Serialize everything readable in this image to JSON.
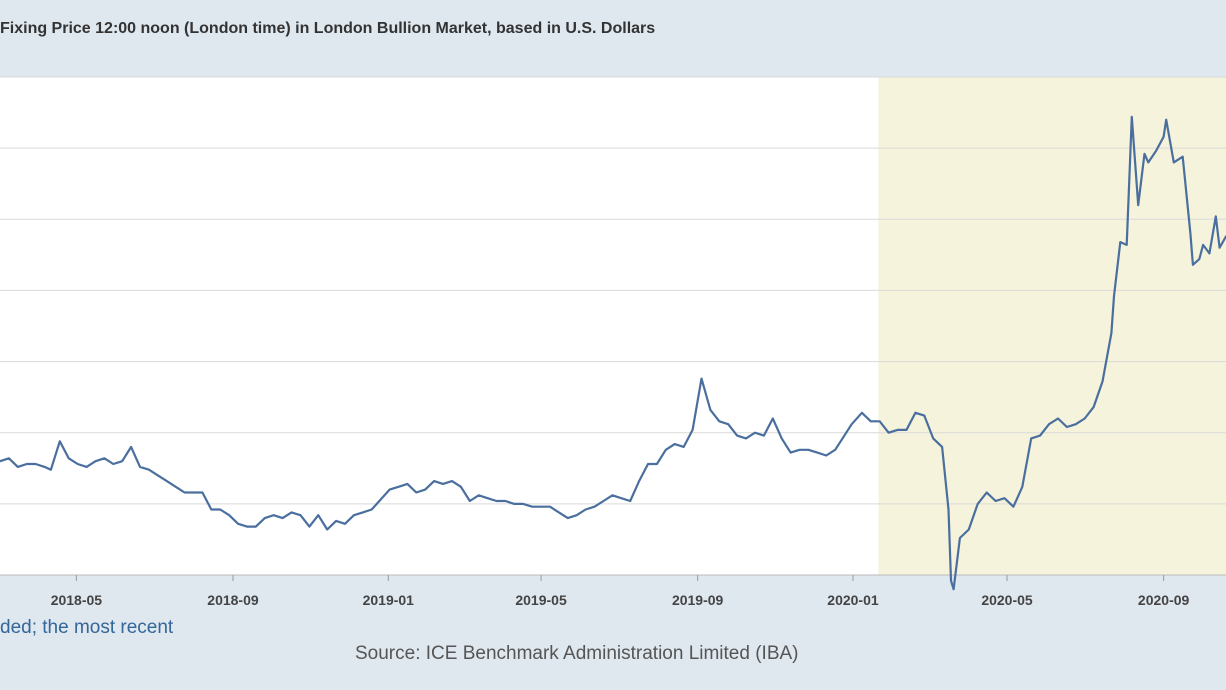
{
  "chart_data": {
    "type": "line",
    "title": "Fixing Price 12:00 noon (London time) in London Bullion Market, based in U.S. Dollars",
    "xlabel": "",
    "ylabel": "",
    "x_range": [
      "2018-03-02",
      "2020-10-20"
    ],
    "ylim": [
      12.5,
      30.0
    ],
    "grid": true,
    "highlight_range": [
      "2020-01-21",
      "2020-10-20"
    ],
    "colors": {
      "line": "#4a6f9e",
      "highlight": "#f5f3dc",
      "grid": "#d9d9d9",
      "background": "#ffffff"
    },
    "x_ticks": [
      "2018-05",
      "2018-09",
      "2019-01",
      "2019-05",
      "2019-09",
      "2020-01",
      "2020-05",
      "2020-09"
    ],
    "series": [
      {
        "values": [
          [
            "2018-03-02",
            16.5
          ],
          [
            "2018-03-09",
            16.6
          ],
          [
            "2018-03-16",
            16.3
          ],
          [
            "2018-03-23",
            16.4
          ],
          [
            "2018-03-30",
            16.4
          ],
          [
            "2018-04-06",
            16.3
          ],
          [
            "2018-04-11",
            16.2
          ],
          [
            "2018-04-18",
            17.2
          ],
          [
            "2018-04-25",
            16.6
          ],
          [
            "2018-05-02",
            16.4
          ],
          [
            "2018-05-09",
            16.3
          ],
          [
            "2018-05-16",
            16.5
          ],
          [
            "2018-05-23",
            16.6
          ],
          [
            "2018-05-30",
            16.4
          ],
          [
            "2018-06-06",
            16.5
          ],
          [
            "2018-06-13",
            17.0
          ],
          [
            "2018-06-20",
            16.3
          ],
          [
            "2018-06-27",
            16.2
          ],
          [
            "2018-07-04",
            16.0
          ],
          [
            "2018-07-11",
            15.8
          ],
          [
            "2018-07-18",
            15.6
          ],
          [
            "2018-07-25",
            15.4
          ],
          [
            "2018-08-01",
            15.4
          ],
          [
            "2018-08-08",
            15.4
          ],
          [
            "2018-08-15",
            14.8
          ],
          [
            "2018-08-22",
            14.8
          ],
          [
            "2018-08-29",
            14.6
          ],
          [
            "2018-09-05",
            14.3
          ],
          [
            "2018-09-12",
            14.2
          ],
          [
            "2018-09-19",
            14.2
          ],
          [
            "2018-09-26",
            14.5
          ],
          [
            "2018-10-03",
            14.6
          ],
          [
            "2018-10-10",
            14.5
          ],
          [
            "2018-10-17",
            14.7
          ],
          [
            "2018-10-24",
            14.6
          ],
          [
            "2018-10-31",
            14.2
          ],
          [
            "2018-11-07",
            14.6
          ],
          [
            "2018-11-14",
            14.1
          ],
          [
            "2018-11-21",
            14.4
          ],
          [
            "2018-11-28",
            14.3
          ],
          [
            "2018-12-05",
            14.6
          ],
          [
            "2018-12-12",
            14.7
          ],
          [
            "2018-12-19",
            14.8
          ],
          [
            "2019-01-02",
            15.5
          ],
          [
            "2019-01-09",
            15.6
          ],
          [
            "2019-01-16",
            15.7
          ],
          [
            "2019-01-23",
            15.4
          ],
          [
            "2019-01-30",
            15.5
          ],
          [
            "2019-02-06",
            15.8
          ],
          [
            "2019-02-13",
            15.7
          ],
          [
            "2019-02-20",
            15.8
          ],
          [
            "2019-02-27",
            15.6
          ],
          [
            "2019-03-06",
            15.1
          ],
          [
            "2019-03-13",
            15.3
          ],
          [
            "2019-03-20",
            15.2
          ],
          [
            "2019-03-27",
            15.1
          ],
          [
            "2019-04-03",
            15.1
          ],
          [
            "2019-04-10",
            15.0
          ],
          [
            "2019-04-17",
            15.0
          ],
          [
            "2019-04-24",
            14.9
          ],
          [
            "2019-05-01",
            14.9
          ],
          [
            "2019-05-08",
            14.9
          ],
          [
            "2019-05-15",
            14.7
          ],
          [
            "2019-05-22",
            14.5
          ],
          [
            "2019-05-29",
            14.6
          ],
          [
            "2019-06-05",
            14.8
          ],
          [
            "2019-06-12",
            14.9
          ],
          [
            "2019-06-19",
            15.1
          ],
          [
            "2019-06-26",
            15.3
          ],
          [
            "2019-07-03",
            15.2
          ],
          [
            "2019-07-10",
            15.1
          ],
          [
            "2019-07-17",
            15.8
          ],
          [
            "2019-07-24",
            16.4
          ],
          [
            "2019-07-31",
            16.4
          ],
          [
            "2019-08-07",
            16.9
          ],
          [
            "2019-08-14",
            17.1
          ],
          [
            "2019-08-21",
            17.0
          ],
          [
            "2019-08-28",
            17.6
          ],
          [
            "2019-09-04",
            19.4
          ],
          [
            "2019-09-11",
            18.3
          ],
          [
            "2019-09-18",
            17.9
          ],
          [
            "2019-09-25",
            17.8
          ],
          [
            "2019-10-02",
            17.4
          ],
          [
            "2019-10-09",
            17.3
          ],
          [
            "2019-10-16",
            17.5
          ],
          [
            "2019-10-23",
            17.4
          ],
          [
            "2019-10-30",
            18.0
          ],
          [
            "2019-11-06",
            17.3
          ],
          [
            "2019-11-13",
            16.8
          ],
          [
            "2019-11-20",
            16.9
          ],
          [
            "2019-11-27",
            16.9
          ],
          [
            "2019-12-04",
            16.8
          ],
          [
            "2019-12-11",
            16.7
          ],
          [
            "2019-12-18",
            16.9
          ],
          [
            "2019-12-31",
            17.8
          ],
          [
            "2020-01-08",
            18.2
          ],
          [
            "2020-01-15",
            17.9
          ],
          [
            "2020-01-22",
            17.9
          ],
          [
            "2020-01-29",
            17.5
          ],
          [
            "2020-02-05",
            17.6
          ],
          [
            "2020-02-12",
            17.6
          ],
          [
            "2020-02-19",
            18.2
          ],
          [
            "2020-02-26",
            18.1
          ],
          [
            "2020-03-04",
            17.3
          ],
          [
            "2020-03-11",
            17.0
          ],
          [
            "2020-03-16",
            14.8
          ],
          [
            "2020-03-18",
            12.3
          ],
          [
            "2020-03-20",
            12.0
          ],
          [
            "2020-03-25",
            13.8
          ],
          [
            "2020-04-01",
            14.1
          ],
          [
            "2020-04-08",
            15.0
          ],
          [
            "2020-04-15",
            15.4
          ],
          [
            "2020-04-22",
            15.1
          ],
          [
            "2020-04-29",
            15.2
          ],
          [
            "2020-05-06",
            14.9
          ],
          [
            "2020-05-13",
            15.6
          ],
          [
            "2020-05-20",
            17.3
          ],
          [
            "2020-05-27",
            17.4
          ],
          [
            "2020-06-03",
            17.8
          ],
          [
            "2020-06-10",
            18.0
          ],
          [
            "2020-06-17",
            17.7
          ],
          [
            "2020-06-24",
            17.8
          ],
          [
            "2020-07-01",
            18.0
          ],
          [
            "2020-07-08",
            18.4
          ],
          [
            "2020-07-15",
            19.3
          ],
          [
            "2020-07-22",
            21.0
          ],
          [
            "2020-07-24",
            22.3
          ],
          [
            "2020-07-29",
            24.2
          ],
          [
            "2020-08-03",
            24.1
          ],
          [
            "2020-08-07",
            28.6
          ],
          [
            "2020-08-12",
            25.5
          ],
          [
            "2020-08-17",
            27.3
          ],
          [
            "2020-08-20",
            27.0
          ],
          [
            "2020-08-26",
            27.4
          ],
          [
            "2020-09-01",
            27.9
          ],
          [
            "2020-09-03",
            28.5
          ],
          [
            "2020-09-09",
            27.0
          ],
          [
            "2020-09-16",
            27.2
          ],
          [
            "2020-09-22",
            24.5
          ],
          [
            "2020-09-24",
            23.4
          ],
          [
            "2020-09-29",
            23.6
          ],
          [
            "2020-10-02",
            24.1
          ],
          [
            "2020-10-07",
            23.8
          ],
          [
            "2020-10-12",
            25.1
          ],
          [
            "2020-10-15",
            24.0
          ],
          [
            "2020-10-20",
            24.4
          ]
        ]
      }
    ]
  },
  "header": {
    "title": "Fixing Price 12:00 noon (London time) in London Bullion Market, based in U.S. Dollars"
  },
  "footer": {
    "note": "ded; the most recent",
    "source": "Source: ICE Benchmark Administration Limited (IBA)"
  }
}
